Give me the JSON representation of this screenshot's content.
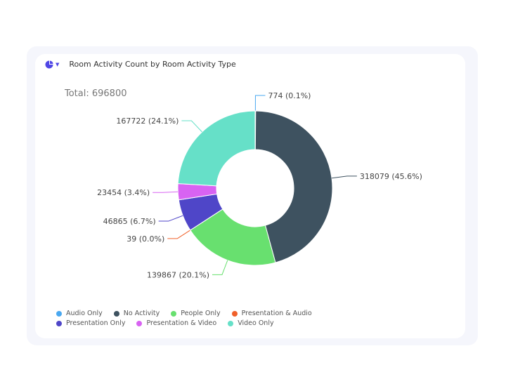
{
  "header": {
    "title": "Room Activity Count by Room Activity Type",
    "icon": "pie-chart-icon"
  },
  "chart_data": {
    "type": "pie",
    "donut": true,
    "title": "Room Activity Count by Room Activity Type",
    "total_label": "Total: 696800",
    "legend_position": "bottom",
    "categories": [
      "Audio Only",
      "No Activity",
      "People Only",
      "Presentation & Audio",
      "Presentation Only",
      "Presentation & Video",
      "Video Only"
    ],
    "values": [
      774,
      318079,
      139867,
      39,
      46865,
      23454,
      167722
    ],
    "labels": [
      "774 (0.1%)",
      "318079 (45.6%)",
      "139867 (20.1%)",
      "39 (0.0%)",
      "46865 (6.7%)",
      "23454 (3.4%)",
      "167722 (24.1%)"
    ],
    "colors": [
      "#4aa8f0",
      "#3e5260",
      "#68e06f",
      "#f0602a",
      "#4f46c8",
      "#d863f2",
      "#66e0c8"
    ]
  }
}
